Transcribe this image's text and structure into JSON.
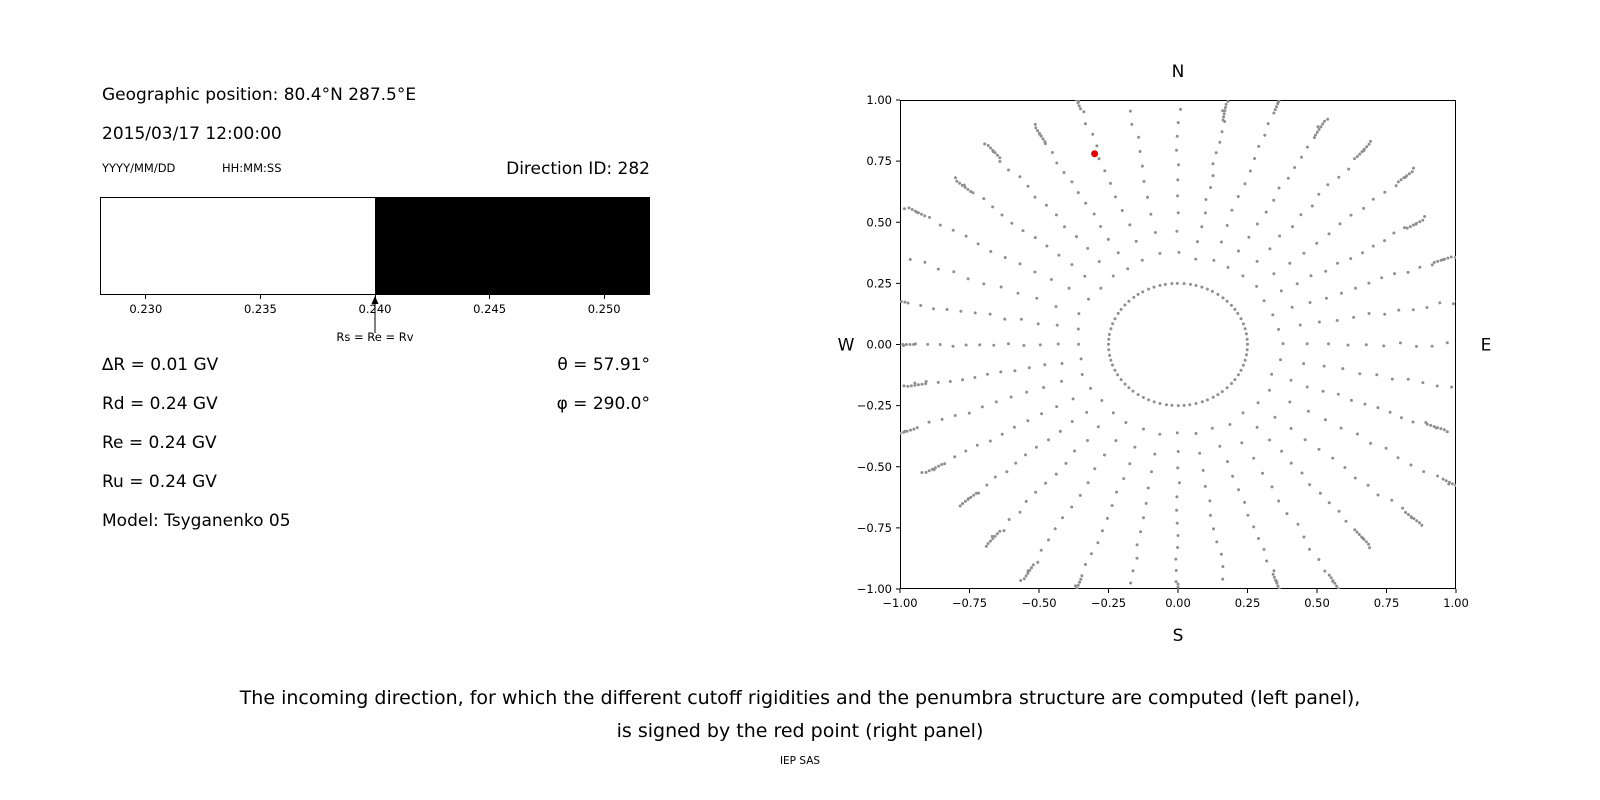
{
  "left_panel": {
    "geo_position": "Geographic position: 80.4°N 287.5°E",
    "datetime": "2015/03/17 12:00:00",
    "date_format_label": "YYYY/MM/DD",
    "time_format_label": "HH:MM:SS",
    "direction_id_label": "Direction ID: 282",
    "params": [
      "∆R = 0.01 GV",
      "Rd = 0.24 GV",
      "Re = 0.24 GV",
      "Ru = 0.24 GV",
      "Model: Tsyganenko 05"
    ],
    "theta_label": "θ = 57.91°",
    "phi_label": "φ = 290.0°"
  },
  "caption": {
    "line1": "The incoming direction, for which the different cutoff rigidities and the penumbra structure are computed (left panel),",
    "line2": "is signed by the red point (right panel)"
  },
  "footer": "IEP SAS",
  "chart_data": [
    {
      "type": "area",
      "name": "penumbra-structure",
      "x_range": [
        0.228,
        0.252
      ],
      "transition": 0.24,
      "regions": [
        {
          "from": 0.228,
          "to": 0.24,
          "color": "#ffffff",
          "meaning": "allowed rigidities"
        },
        {
          "from": 0.24,
          "to": 0.252,
          "color": "#000000",
          "meaning": "forbidden rigidities"
        }
      ],
      "ticks": [
        {
          "value": 0.23,
          "label": "0.230"
        },
        {
          "value": 0.235,
          "label": "0.235"
        },
        {
          "value": 0.24,
          "label": "0.240"
        },
        {
          "value": 0.245,
          "label": "0.245"
        },
        {
          "value": 0.25,
          "label": "0.250"
        }
      ],
      "annotation": {
        "label": "Rs = Re = Rv",
        "x": 0.24
      }
    },
    {
      "type": "scatter",
      "name": "incoming-directions-sky-map",
      "xlim": [
        -1,
        1
      ],
      "ylim": [
        -1,
        1
      ],
      "x_ticks": [
        {
          "value": -1,
          "label": "−1.00"
        },
        {
          "value": -0.75,
          "label": "−0.75"
        },
        {
          "value": -0.5,
          "label": "−0.50"
        },
        {
          "value": -0.25,
          "label": "−0.25"
        },
        {
          "value": 0,
          "label": "0.00"
        },
        {
          "value": 0.25,
          "label": "0.25"
        },
        {
          "value": 0.5,
          "label": "0.50"
        },
        {
          "value": 0.75,
          "label": "0.75"
        },
        {
          "value": 1,
          "label": "1.00"
        }
      ],
      "y_ticks": [
        {
          "value": 1,
          "label": "1.00"
        },
        {
          "value": 0.75,
          "label": "0.75"
        },
        {
          "value": 0.5,
          "label": "0.50"
        },
        {
          "value": 0.25,
          "label": "0.25"
        },
        {
          "value": 0,
          "label": "0.00"
        },
        {
          "value": -0.25,
          "label": "−0.25"
        },
        {
          "value": -0.5,
          "label": "−0.50"
        },
        {
          "value": -0.75,
          "label": "−0.75"
        },
        {
          "value": -1,
          "label": "−1.00"
        }
      ],
      "compass": {
        "top": "N",
        "bottom": "S",
        "left": "W",
        "right": "E"
      },
      "dot_color": "#8f8f8f",
      "dot_radius": 1.5,
      "red_point": {
        "x": -0.3,
        "y": 0.78,
        "color": "#e50000",
        "radius": 3.5
      },
      "spokes": {
        "count": 36,
        "r_inner": 0.25,
        "r_outer_base": 1.0,
        "r_outer_jitter": 0.18,
        "points_main": 15,
        "points_tip": 6,
        "tip_spacing": 0.013,
        "exponent": 0.75,
        "wobble": 0.02,
        "inner_ring": true
      }
    }
  ]
}
